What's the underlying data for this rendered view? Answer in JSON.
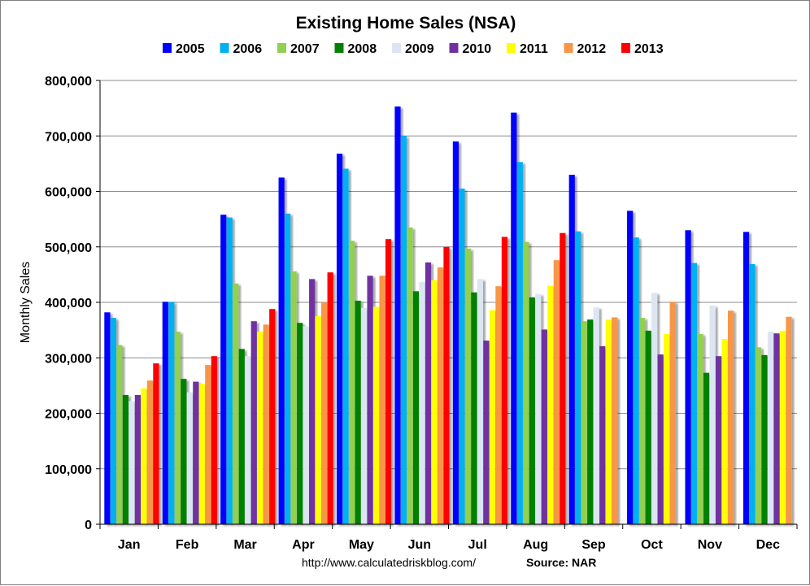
{
  "chart_data": {
    "type": "bar",
    "title": "Existing Home Sales (NSA)",
    "ylabel": "Monthly Sales",
    "xlabel": "",
    "ylim": [
      0,
      800000
    ],
    "yticks": [
      "0",
      "100,000",
      "200,000",
      "300,000",
      "400,000",
      "500,000",
      "600,000",
      "700,000",
      "800,000"
    ],
    "ytick_values": [
      0,
      100000,
      200000,
      300000,
      400000,
      500000,
      600000,
      700000,
      800000
    ],
    "grid": true,
    "legend_position": "top",
    "categories": [
      "Jan",
      "Feb",
      "Mar",
      "Apr",
      "May",
      "Jun",
      "Jul",
      "Aug",
      "Sep",
      "Oct",
      "Nov",
      "Dec"
    ],
    "series": [
      {
        "name": "2005",
        "color": "#0000ff",
        "values": [
          382000,
          401000,
          558000,
          625000,
          668000,
          753000,
          690000,
          742000,
          630000,
          565000,
          530000,
          527000
        ]
      },
      {
        "name": "2006",
        "color": "#00b0f0",
        "values": [
          372000,
          401000,
          553000,
          560000,
          641000,
          700000,
          605000,
          653000,
          528000,
          517000,
          471000,
          469000
        ]
      },
      {
        "name": "2007",
        "color": "#92d050",
        "values": [
          323000,
          347000,
          434000,
          456000,
          511000,
          535000,
          497000,
          509000,
          366000,
          372000,
          343000,
          319000
        ]
      },
      {
        "name": "2008",
        "color": "#008000",
        "values": [
          233000,
          262000,
          316000,
          363000,
          403000,
          420000,
          418000,
          409000,
          369000,
          349000,
          273000,
          305000
        ]
      },
      {
        "name": "2009",
        "color": "#dce6f2",
        "values": [
          222000,
          238000,
          303000,
          357000,
          390000,
          437000,
          442000,
          415000,
          391000,
          417000,
          394000,
          347000
        ]
      },
      {
        "name": "2010",
        "color": "#7030a0",
        "values": [
          233000,
          257000,
          366000,
          442000,
          448000,
          472000,
          331000,
          351000,
          321000,
          306000,
          303000,
          344000
        ]
      },
      {
        "name": "2011",
        "color": "#ffff00",
        "values": [
          245000,
          253000,
          347000,
          375000,
          392000,
          440000,
          386000,
          430000,
          369000,
          343000,
          334000,
          349000
        ]
      },
      {
        "name": "2012",
        "color": "#f79646",
        "values": [
          259000,
          287000,
          360000,
          400000,
          448000,
          463000,
          429000,
          476000,
          373000,
          401000,
          385000,
          374000
        ]
      },
      {
        "name": "2013",
        "color": "#ff0000",
        "values": [
          290000,
          303000,
          388000,
          454000,
          514000,
          500000,
          518000,
          525000,
          null,
          null,
          null,
          null
        ]
      }
    ]
  },
  "footer": {
    "url": "http://www.calculatedriskblog.com/",
    "source": "Source: NAR"
  }
}
